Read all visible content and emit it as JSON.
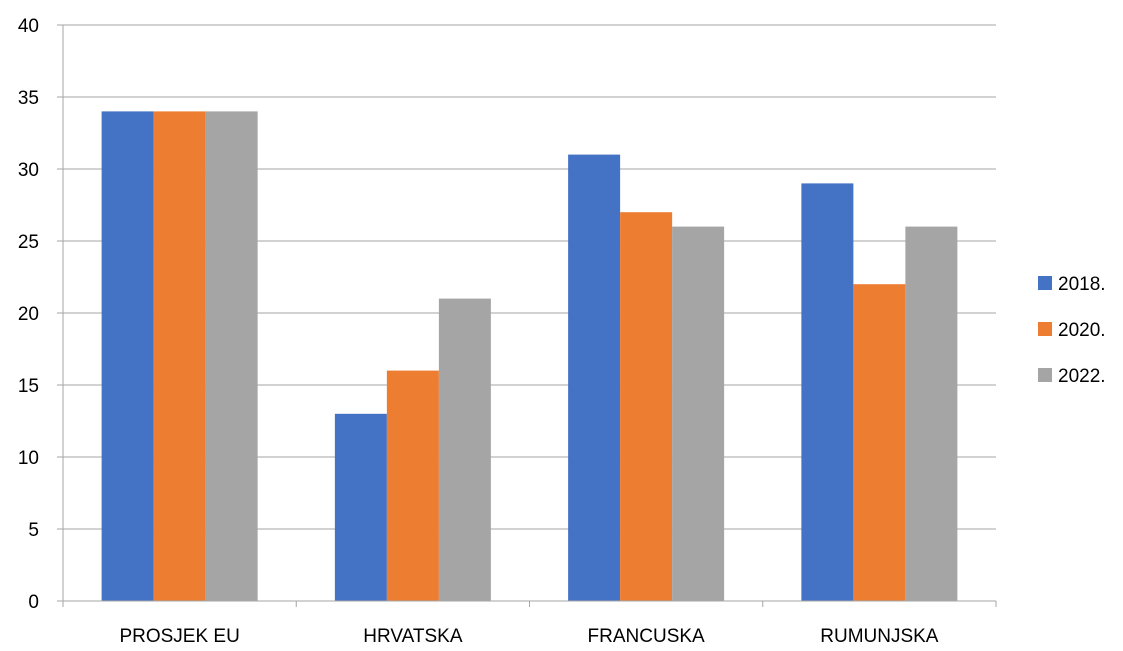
{
  "chart_data": {
    "type": "bar",
    "categories": [
      "PROSJEK EU",
      "HRVATSKA",
      "FRANCUSKA",
      "RUMUNJSKA"
    ],
    "series": [
      {
        "name": "2018.",
        "values": [
          34,
          13,
          31,
          29
        ],
        "color": "#4472C4"
      },
      {
        "name": "2020.",
        "values": [
          34,
          16,
          27,
          22
        ],
        "color": "#ED7D31"
      },
      {
        "name": "2022.",
        "values": [
          34,
          21,
          26,
          26
        ],
        "color": "#A5A5A5"
      }
    ],
    "ylim": [
      0,
      40
    ],
    "yticks": [
      0,
      5,
      10,
      15,
      20,
      25,
      30,
      35,
      40
    ],
    "grid": true,
    "legend": "right",
    "title": "",
    "xlabel": "",
    "ylabel": ""
  }
}
